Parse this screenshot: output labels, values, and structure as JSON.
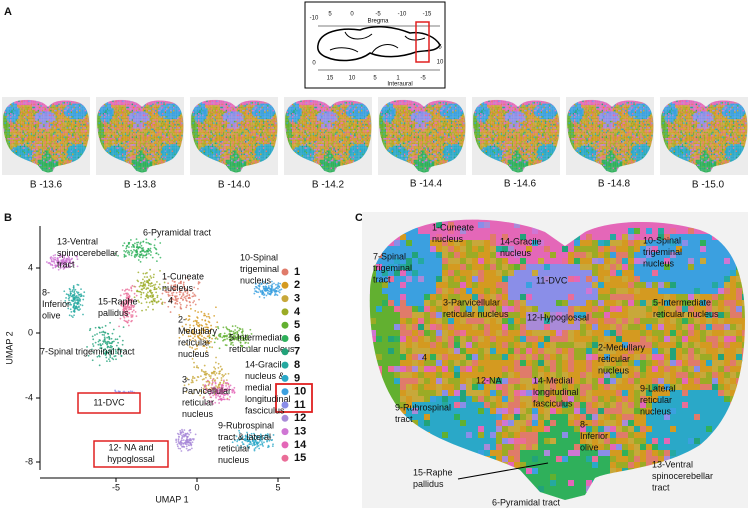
{
  "panel_a": {
    "label": "A",
    "atlas": {
      "top_label": "Bregma",
      "bottom_label": "Interaural",
      "top_ticks": [
        "5",
        "0",
        "-5",
        "-10",
        "-15"
      ],
      "bottom_ticks": [
        "15",
        "10",
        "5",
        "1",
        "-5"
      ],
      "left_ticks": [
        "-10",
        "0"
      ],
      "right_ticks": [
        "5",
        "10"
      ]
    },
    "slices": [
      "B -13.6",
      "B -13.8",
      "B -14.0",
      "B -14.2",
      "B -14.4",
      "B -14.6",
      "B -14.8",
      "B -15.0"
    ]
  },
  "panel_b": {
    "label": "B",
    "x_axis_label": "UMAP 1",
    "y_axis_label": "UMAP 2",
    "xticks": [
      "-5",
      "0",
      "5"
    ],
    "yticks": [
      "4",
      "0",
      "-4",
      "-8"
    ],
    "clusters": [
      {
        "label": "1",
        "color": "#e07b6a"
      },
      {
        "label": "2",
        "color": "#d49a20"
      },
      {
        "label": "3",
        "color": "#c8a83a"
      },
      {
        "label": "4",
        "color": "#9bab25"
      },
      {
        "label": "5",
        "color": "#62b030"
      },
      {
        "label": "6",
        "color": "#2fb05b"
      },
      {
        "label": "7",
        "color": "#22a37a"
      },
      {
        "label": "8",
        "color": "#25a9a0"
      },
      {
        "label": "9",
        "color": "#2aa8c8"
      },
      {
        "label": "10",
        "color": "#3ba0e0"
      },
      {
        "label": "11",
        "color": "#8a8ee8"
      },
      {
        "label": "12",
        "color": "#a98ad8"
      },
      {
        "label": "13",
        "color": "#cf76d4"
      },
      {
        "label": "14",
        "color": "#e467b8"
      },
      {
        "label": "15",
        "color": "#ea6d98"
      }
    ],
    "annotations": [
      {
        "lines": [
          "13-Ventral",
          "spinocerebellar",
          "tract"
        ]
      },
      {
        "lines": [
          "6-Pyramidal tract"
        ]
      },
      {
        "lines": [
          "10-Spinal",
          "trigeminal",
          "nucleus"
        ]
      },
      {
        "lines": [
          "1-Cuneate",
          "nucleus"
        ]
      },
      {
        "lines": [
          "4"
        ]
      },
      {
        "lines": [
          "8-",
          "Inferior",
          "olive"
        ]
      },
      {
        "lines": [
          "15-Raphe",
          "pallidus"
        ]
      },
      {
        "lines": [
          "2-",
          "Medullary",
          "reticular",
          "nucleus"
        ]
      },
      {
        "lines": [
          "5-Intermediate",
          "reticular nucleus"
        ]
      },
      {
        "lines": [
          "7-Spinal trigeminal tract"
        ]
      },
      {
        "lines": [
          "14-Gracile",
          "nucleus    &",
          "medial",
          "longitudinal",
          "fasciculus"
        ]
      },
      {
        "lines": [
          "3-",
          "Parvicellular",
          "reticular",
          "nucleus"
        ]
      },
      {
        "lines": [
          "9-Rubrospinal",
          "tract   &   lateral",
          "reticular",
          "nucleus"
        ]
      }
    ],
    "boxed_annotations": [
      {
        "lines": [
          "11-DVC"
        ]
      },
      {
        "lines": [
          "12- NA and",
          "hypoglossal"
        ]
      }
    ]
  },
  "panel_c": {
    "label": "C",
    "annotations": [
      {
        "lines": [
          "1-Cuneate",
          "nucleus"
        ]
      },
      {
        "lines": [
          "14-Gracile",
          "nucleus"
        ]
      },
      {
        "lines": [
          "7-Spinal",
          "trigeminal",
          "tract"
        ]
      },
      {
        "lines": [
          "10-Spinal",
          "trigeminal",
          "nucleus"
        ]
      },
      {
        "lines": [
          "11-DVC"
        ]
      },
      {
        "lines": [
          "3-Parvicellular",
          "reticular nucleus"
        ]
      },
      {
        "lines": [
          "12-Hypoglossal"
        ]
      },
      {
        "lines": [
          "5-Intermediate",
          "reticular nucleus"
        ]
      },
      {
        "lines": [
          "4"
        ]
      },
      {
        "lines": [
          "2-Medullary",
          "reticular",
          "nucleus"
        ]
      },
      {
        "lines": [
          "12-NA"
        ]
      },
      {
        "lines": [
          "14-Medial",
          "longitudinal",
          "fasciculus"
        ]
      },
      {
        "lines": [
          "9-Lateral",
          "reticular",
          "nucleus"
        ]
      },
      {
        "lines": [
          "9-Rubrospinal",
          "tract"
        ]
      },
      {
        "lines": [
          "8-",
          "Inferior",
          "olive"
        ]
      },
      {
        "lines": [
          "15-Raphe",
          "pallidus"
        ]
      },
      {
        "lines": [
          "13-Ventral",
          "spinocerebellar",
          "tract"
        ]
      },
      {
        "lines": [
          "6-Pyramidal tract"
        ]
      }
    ]
  }
}
